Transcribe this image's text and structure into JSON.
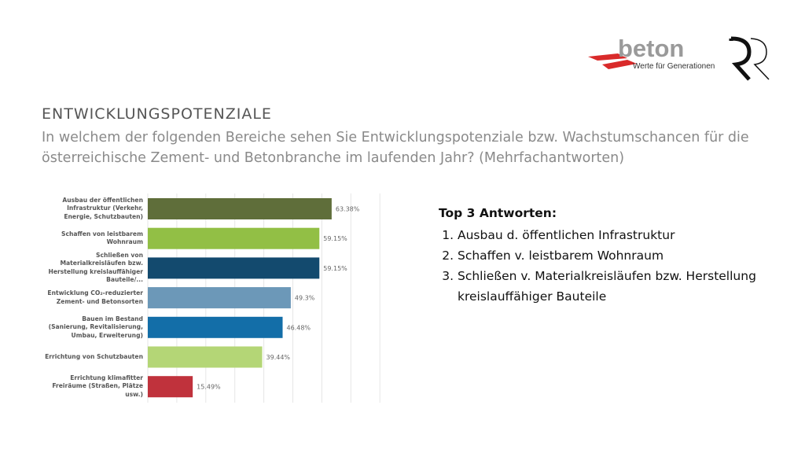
{
  "header": {
    "title": "ENTWICKLUNGSPOTENZIALE",
    "question": "In welchem der folgenden Bereiche sehen Sie Entwicklungspotenziale bzw. Wachstumschancen für die österreichische Zement- und Betonbranche im laufenden Jahr? (Mehrfachantworten)"
  },
  "logos": {
    "beton_word": "beton",
    "beton_tagline": "Werte für Generationen",
    "rr": "RR"
  },
  "chart_data": {
    "type": "bar",
    "orientation": "horizontal",
    "xlim": [
      0,
      80
    ],
    "grid": true,
    "categories": [
      "Ausbau der öffentlichen Infrastruktur (Verkehr, Energie, Schutzbauten)",
      "Schaffen von leistbarem Wohnraum",
      "Schließen von Materialkreisläufen bzw. Herstellung kreislauffähiger Bauteile/...",
      "Entwicklung CO₂-reduzierter Zement- und Betonsorten",
      "Bauen im Bestand (Sanierung, Revitalisierung, Umbau, Erweiterung)",
      "Errichtung von Schutzbauten",
      "Errichtung klimafitter Freiräume (Straßen, Plätze usw.)"
    ],
    "values": [
      63.38,
      59.15,
      59.15,
      49.3,
      46.48,
      39.44,
      15.49
    ],
    "labels": [
      "63.38%",
      "59.15%",
      "59.15%",
      "49.3%",
      "46.48%",
      "39.44%",
      "15.49%"
    ],
    "colors": [
      "#5f6e3a",
      "#92bf45",
      "#134a6e",
      "#6c98b8",
      "#136ea8",
      "#b4d676",
      "#c0323c"
    ]
  },
  "top3": {
    "heading": "Top 3 Antworten:",
    "items": [
      "Ausbau d. öffentlichen Infrastruktur",
      "Schaffen v. leistbarem Wohnraum",
      "Schließen v. Materialkreisläufen bzw. Herstellung kreislauffähiger Bauteile"
    ]
  }
}
